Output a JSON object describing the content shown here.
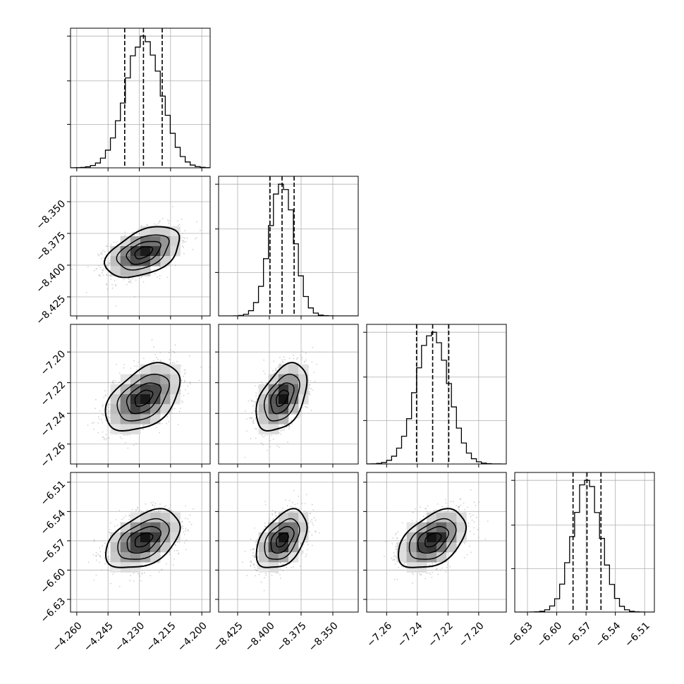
{
  "chart_data": {
    "type": "corner",
    "n_params": 4,
    "grid": true,
    "quantile_lines": "dashed",
    "params": [
      {
        "center": -4.228,
        "sigma": 0.0085,
        "q16": -4.237,
        "q50": -4.228,
        "q84": -4.219,
        "range": [
          -4.263,
          -4.196
        ],
        "ticks": [
          -4.26,
          -4.245,
          -4.23,
          -4.215,
          -4.2
        ],
        "tick_labels": [
          "−4.260",
          "−4.245",
          "−4.230",
          "−4.215",
          "−4.200"
        ]
      },
      {
        "center": -8.39,
        "sigma": 0.0095,
        "q16": -8.3995,
        "q50": -8.39,
        "q84": -8.3805,
        "range": [
          -8.44,
          -8.33
        ],
        "ticks": [
          -8.425,
          -8.4,
          -8.375,
          -8.35
        ],
        "tick_labels": [
          "−8.425",
          "−8.400",
          "−8.375",
          "−8.350"
        ]
      },
      {
        "center": -7.23,
        "sigma": 0.0105,
        "q16": -7.2405,
        "q50": -7.23,
        "q84": -7.2195,
        "range": [
          -7.273,
          -7.182
        ],
        "ticks": [
          -7.26,
          -7.24,
          -7.22,
          -7.2
        ],
        "tick_labels": [
          "−7.26",
          "−7.24",
          "−7.22",
          "−7.20"
        ]
      },
      {
        "center": -6.569,
        "sigma": 0.0143,
        "q16": -6.5833,
        "q50": -6.569,
        "q84": -6.5547,
        "range": [
          -6.643,
          -6.5
        ],
        "ticks": [
          -6.63,
          -6.6,
          -6.57,
          -6.54,
          -6.51
        ],
        "tick_labels": [
          "−6.63",
          "−6.60",
          "−6.57",
          "−6.54",
          "−6.51"
        ]
      }
    ],
    "correlation": 0.45
  }
}
